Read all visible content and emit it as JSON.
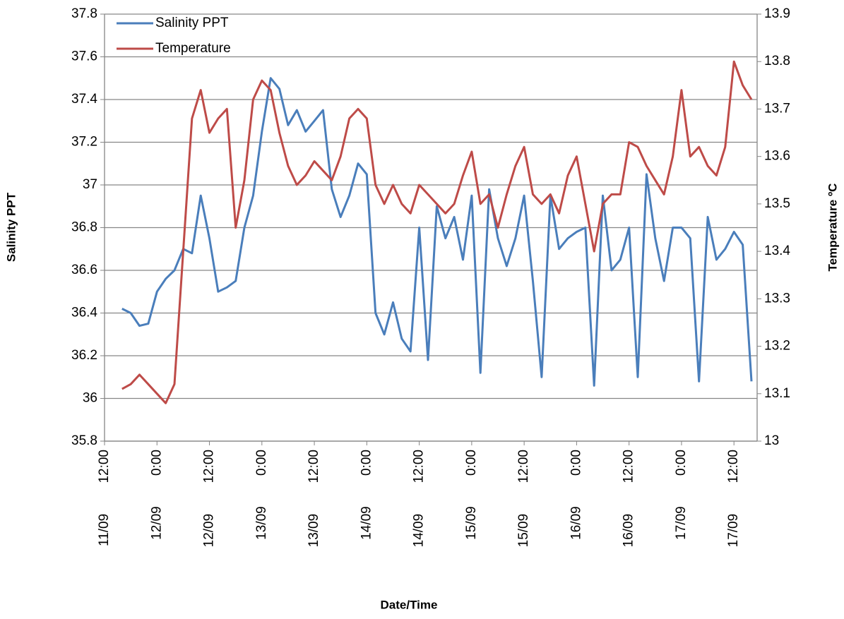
{
  "chart_data": {
    "type": "line",
    "x_label": "Date/Time",
    "y_label": "Salinity PPT",
    "y2_label": "Temperature ºC",
    "x": [
      "11/09 16:00",
      "11/09 18:00",
      "11/09 20:00",
      "11/09 22:00",
      "12/09 0:00",
      "12/09 2:00",
      "12/09 4:00",
      "12/09 6:00",
      "12/09 8:00",
      "12/09 10:00",
      "12/09 12:00",
      "12/09 14:00",
      "12/09 16:00",
      "12/09 18:00",
      "12/09 20:00",
      "12/09 22:00",
      "13/09 0:00",
      "13/09 2:00",
      "13/09 4:00",
      "13/09 6:00",
      "13/09 8:00",
      "13/09 10:00",
      "13/09 12:00",
      "13/09 14:00",
      "13/09 16:00",
      "13/09 18:00",
      "13/09 20:00",
      "13/09 22:00",
      "14/09 0:00",
      "14/09 2:00",
      "14/09 4:00",
      "14/09 6:00",
      "14/09 8:00",
      "14/09 10:00",
      "14/09 12:00",
      "14/09 14:00",
      "14/09 16:00",
      "14/09 18:00",
      "14/09 20:00",
      "14/09 22:00",
      "15/09 0:00",
      "15/09 2:00",
      "15/09 4:00",
      "15/09 6:00",
      "15/09 8:00",
      "15/09 10:00",
      "15/09 12:00",
      "15/09 14:00",
      "15/09 16:00",
      "15/09 18:00",
      "15/09 20:00",
      "15/09 22:00",
      "16/09 0:00",
      "16/09 2:00",
      "16/09 4:00",
      "16/09 6:00",
      "16/09 8:00",
      "16/09 10:00",
      "16/09 12:00",
      "16/09 14:00",
      "16/09 16:00",
      "16/09 18:00",
      "16/09 20:00",
      "16/09 22:00",
      "17/09 0:00",
      "17/09 2:00",
      "17/09 4:00",
      "17/09 6:00",
      "17/09 8:00",
      "17/09 10:00",
      "17/09 12:00",
      "17/09 14:00",
      "17/09 16:00"
    ],
    "series": [
      {
        "name": "Salinity PPT",
        "color": "#4a7ebb",
        "axis": "y",
        "values": [
          36.42,
          36.4,
          36.34,
          36.35,
          36.5,
          36.56,
          36.6,
          36.7,
          36.68,
          36.95,
          36.75,
          36.5,
          36.52,
          36.55,
          36.8,
          36.95,
          37.25,
          37.5,
          37.45,
          37.28,
          37.35,
          37.25,
          37.3,
          37.35,
          36.98,
          36.85,
          36.95,
          37.1,
          37.05,
          36.4,
          36.3,
          36.45,
          36.28,
          36.22,
          36.8,
          36.18,
          36.9,
          36.75,
          36.85,
          36.65,
          36.95,
          36.12,
          36.98,
          36.75,
          36.62,
          36.75,
          36.95,
          36.55,
          36.1,
          36.95,
          36.7,
          36.75,
          36.78,
          36.8,
          36.06,
          36.95,
          36.6,
          36.65,
          36.8,
          36.1,
          37.05,
          36.75,
          36.55,
          36.8,
          36.8,
          36.75,
          36.08,
          36.85,
          36.65,
          36.7,
          36.78,
          36.72,
          36.08
        ]
      },
      {
        "name": "Temperature",
        "color": "#be4b48",
        "axis": "y2",
        "values": [
          13.11,
          13.12,
          13.14,
          13.12,
          13.1,
          13.08,
          13.12,
          13.4,
          13.68,
          13.74,
          13.65,
          13.68,
          13.7,
          13.45,
          13.55,
          13.72,
          13.76,
          13.74,
          13.65,
          13.58,
          13.54,
          13.56,
          13.59,
          13.57,
          13.55,
          13.6,
          13.68,
          13.7,
          13.68,
          13.54,
          13.5,
          13.54,
          13.5,
          13.48,
          13.54,
          13.52,
          13.5,
          13.48,
          13.5,
          13.56,
          13.61,
          13.5,
          13.52,
          13.45,
          13.52,
          13.58,
          13.62,
          13.52,
          13.5,
          13.52,
          13.48,
          13.56,
          13.6,
          13.5,
          13.4,
          13.5,
          13.52,
          13.52,
          13.63,
          13.62,
          13.58,
          13.55,
          13.52,
          13.6,
          13.74,
          13.6,
          13.62,
          13.58,
          13.56,
          13.62,
          13.8,
          13.75,
          13.72
        ]
      }
    ],
    "xlim": [
      "11/09 12:00",
      "17/09 17:18"
    ],
    "xticks": [
      "11/09 12:00",
      "12/09 0:00",
      "12/09 12:00",
      "13/09 0:00",
      "13/09 12:00",
      "14/09 0:00",
      "14/09 12:00",
      "15/09 0:00",
      "15/09 12:00",
      "16/09 0:00",
      "16/09 12:00",
      "17/09 0:00",
      "17/09 12:00"
    ],
    "ylim": [
      35.8,
      37.8
    ],
    "yticks": [
      35.8,
      36,
      36.2,
      36.4,
      36.6,
      36.8,
      37,
      37.2,
      37.4,
      37.6,
      37.8
    ],
    "y2lim": [
      13,
      13.9
    ],
    "y2ticks": [
      13,
      13.1,
      13.2,
      13.3,
      13.4,
      13.5,
      13.6,
      13.7,
      13.8,
      13.9
    ],
    "grid": true,
    "legend": "upper left"
  }
}
